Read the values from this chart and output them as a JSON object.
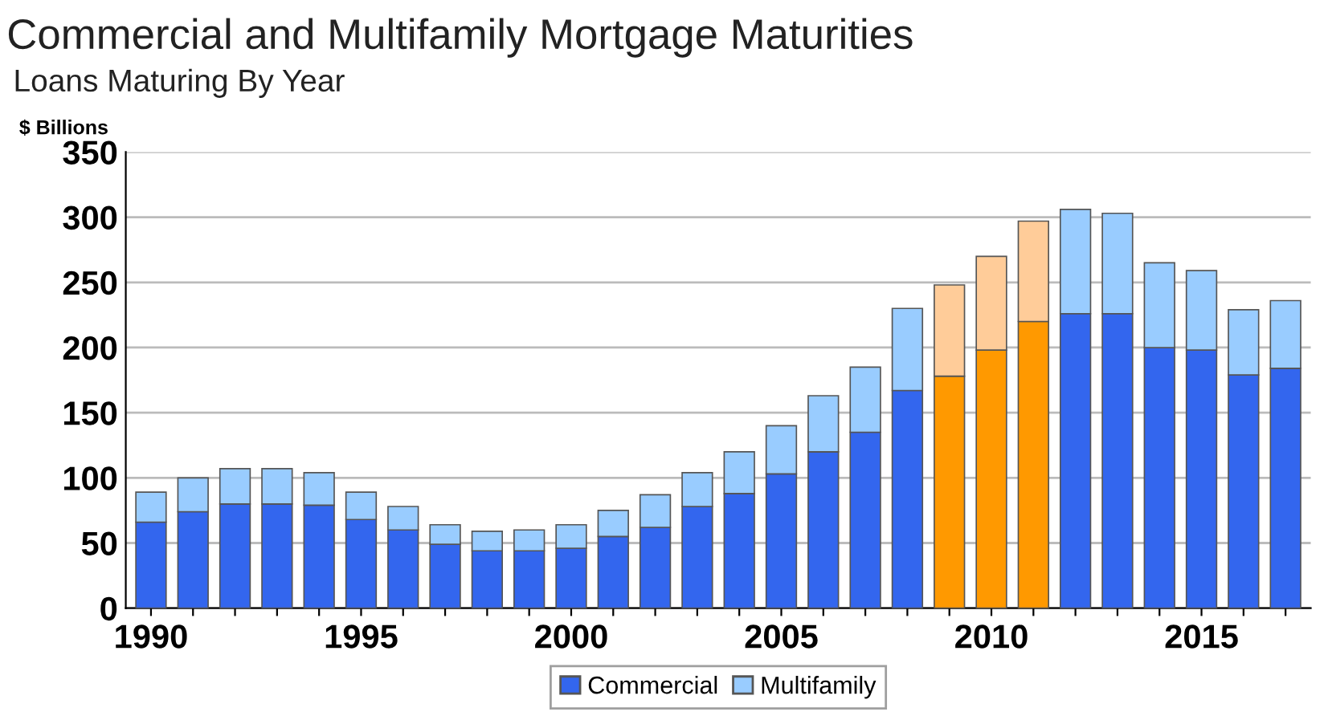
{
  "chart_data": {
    "type": "bar",
    "title": "Commercial and Multifamily Mortgage Maturities",
    "subtitle": "Loans Maturing By Year",
    "ylabel": "$ Billions",
    "categories": [
      "1990",
      null,
      null,
      null,
      null,
      "1995",
      null,
      null,
      null,
      null,
      "2000",
      null,
      null,
      null,
      null,
      "2005",
      null,
      null,
      null,
      null,
      "2010",
      null,
      null,
      null,
      null,
      "2015",
      null,
      null
    ],
    "stacked": true,
    "series": [
      {
        "name": "Commercial",
        "color": "#3366ee",
        "colors": [
          "#3366ee",
          "#3366ee",
          "#3366ee",
          "#3366ee",
          "#3366ee",
          "#3366ee",
          "#3366ee",
          "#3366ee",
          "#3366ee",
          "#3366ee",
          "#3366ee",
          "#3366ee",
          "#3366ee",
          "#3366ee",
          "#3366ee",
          "#3366ee",
          "#3366ee",
          "#3366ee",
          "#3366ee",
          "#ff9900",
          "#ff9900",
          "#ff9900",
          "#3366ee",
          "#3366ee",
          "#3366ee",
          "#3366ee",
          "#3366ee",
          "#3366ee"
        ],
        "values": [
          66,
          74,
          80,
          80,
          79,
          68,
          60,
          49,
          44,
          44,
          46,
          55,
          62,
          78,
          88,
          103,
          120,
          135,
          167,
          178,
          198,
          220,
          226,
          226,
          200,
          198,
          179,
          184
        ]
      },
      {
        "name": "Multifamily",
        "color": "#99ccff",
        "colors": [
          "#99ccff",
          "#99ccff",
          "#99ccff",
          "#99ccff",
          "#99ccff",
          "#99ccff",
          "#99ccff",
          "#99ccff",
          "#99ccff",
          "#99ccff",
          "#99ccff",
          "#99ccff",
          "#99ccff",
          "#99ccff",
          "#99ccff",
          "#99ccff",
          "#99ccff",
          "#99ccff",
          "#99ccff",
          "#ffcc99",
          "#ffcc99",
          "#ffcc99",
          "#99ccff",
          "#99ccff",
          "#99ccff",
          "#99ccff",
          "#99ccff",
          "#99ccff"
        ],
        "values": [
          23,
          26,
          27,
          27,
          25,
          21,
          18,
          15,
          15,
          16,
          18,
          20,
          25,
          26,
          32,
          37,
          43,
          50,
          63,
          70,
          72,
          77,
          80,
          77,
          65,
          61,
          50,
          52
        ]
      }
    ],
    "ylim": [
      0,
      350
    ],
    "yticks": [
      0,
      50,
      100,
      150,
      200,
      250,
      300,
      350
    ],
    "grid": "y",
    "legend": "bottom"
  }
}
